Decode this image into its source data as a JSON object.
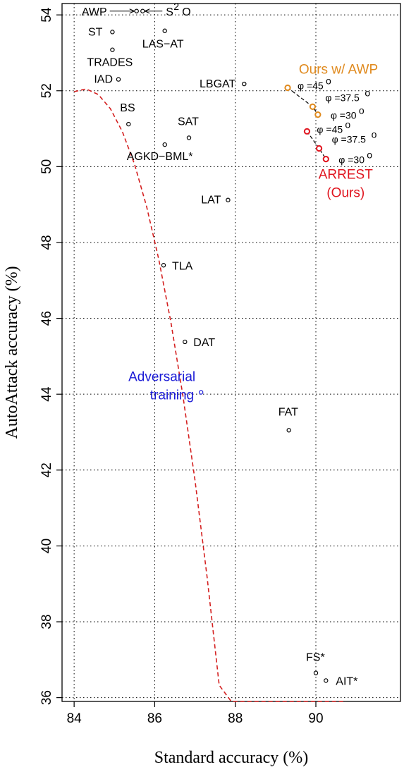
{
  "chart_data": {
    "type": "scatter",
    "xlabel": "Standard accuracy (%)",
    "ylabel": "AutoAttack accuracy (%)",
    "xlim": [
      83.7,
      92.1
    ],
    "ylim": [
      35.9,
      54.3
    ],
    "xticks": [
      84,
      86,
      88,
      90
    ],
    "yticks": [
      36,
      38,
      40,
      42,
      44,
      46,
      48,
      50,
      52,
      54
    ],
    "grid": true,
    "colors": {
      "baseline": "#000000",
      "awp": "#e08a1e",
      "arrest": "#e0141e",
      "adversarial": "#1a1ad6",
      "frontier": "#d42020"
    },
    "points": [
      {
        "label": "ST",
        "x": 84.95,
        "y": 53.55
      },
      {
        "label": "TRADES",
        "x": 84.95,
        "y": 53.08
      },
      {
        "label": "IAD",
        "x": 85.1,
        "y": 52.3
      },
      {
        "label": "BS",
        "x": 85.35,
        "y": 51.12
      },
      {
        "label": "LAS−AT",
        "x": 86.25,
        "y": 53.58
      },
      {
        "label": "LBGAT",
        "x": 88.22,
        "y": 52.18
      },
      {
        "label": "SAT",
        "x": 86.85,
        "y": 50.76
      },
      {
        "label": "AGKD−BML*",
        "x": 86.25,
        "y": 50.58
      },
      {
        "label": "LAT",
        "x": 87.82,
        "y": 49.12
      },
      {
        "label": "TLA",
        "x": 86.22,
        "y": 47.4
      },
      {
        "label": "DAT",
        "x": 86.75,
        "y": 45.38
      },
      {
        "label": "FAT",
        "x": 89.33,
        "y": 43.05
      },
      {
        "label": "FS*",
        "x": 90.0,
        "y": 36.65
      },
      {
        "label": "AIT*",
        "x": 90.25,
        "y": 36.45
      },
      {
        "label": "",
        "x": 85.55,
        "y": 54.1
      },
      {
        "label": "",
        "x": 85.7,
        "y": 54.1
      },
      {
        "label": "",
        "x": 87.15,
        "y": 44.05,
        "group": "adversarial"
      }
    ],
    "awp_top_label": "AWP",
    "awp_top_label2": "S",
    "awp_top_sup": "2",
    "awp_top_label3": "O",
    "adversarial_label_1": "Adversarial",
    "adversarial_label_2": "training",
    "series": [
      {
        "name": "Ours w/ AWP",
        "color": "#e08a1e",
        "points": [
          {
            "phi": "45",
            "x": 89.3,
            "y": 52.08
          },
          {
            "phi": "37.5",
            "x": 89.92,
            "y": 51.58
          },
          {
            "phi": "30",
            "x": 90.05,
            "y": 51.37
          }
        ]
      },
      {
        "name": "ARREST",
        "name2": "(Ours)",
        "color": "#e0141e",
        "points": [
          {
            "phi": "45",
            "x": 89.78,
            "y": 50.93
          },
          {
            "phi": "37.5",
            "x": 90.08,
            "y": 50.48
          },
          {
            "phi": "30",
            "x": 90.25,
            "y": 50.2
          }
        ]
      }
    ],
    "phi_symbol": "φ",
    "degree_symbol": "o",
    "frontier_curve": {
      "color": "#d42020",
      "x": [
        84.0,
        84.3,
        84.6,
        84.9,
        85.2,
        85.5,
        85.8,
        86.1,
        86.4,
        86.7,
        87.0,
        87.3,
        87.6,
        87.9,
        88.2,
        88.5,
        88.8,
        89.1,
        89.4,
        89.7,
        90.0,
        90.3,
        90.6,
        90.75
      ]
    }
  }
}
